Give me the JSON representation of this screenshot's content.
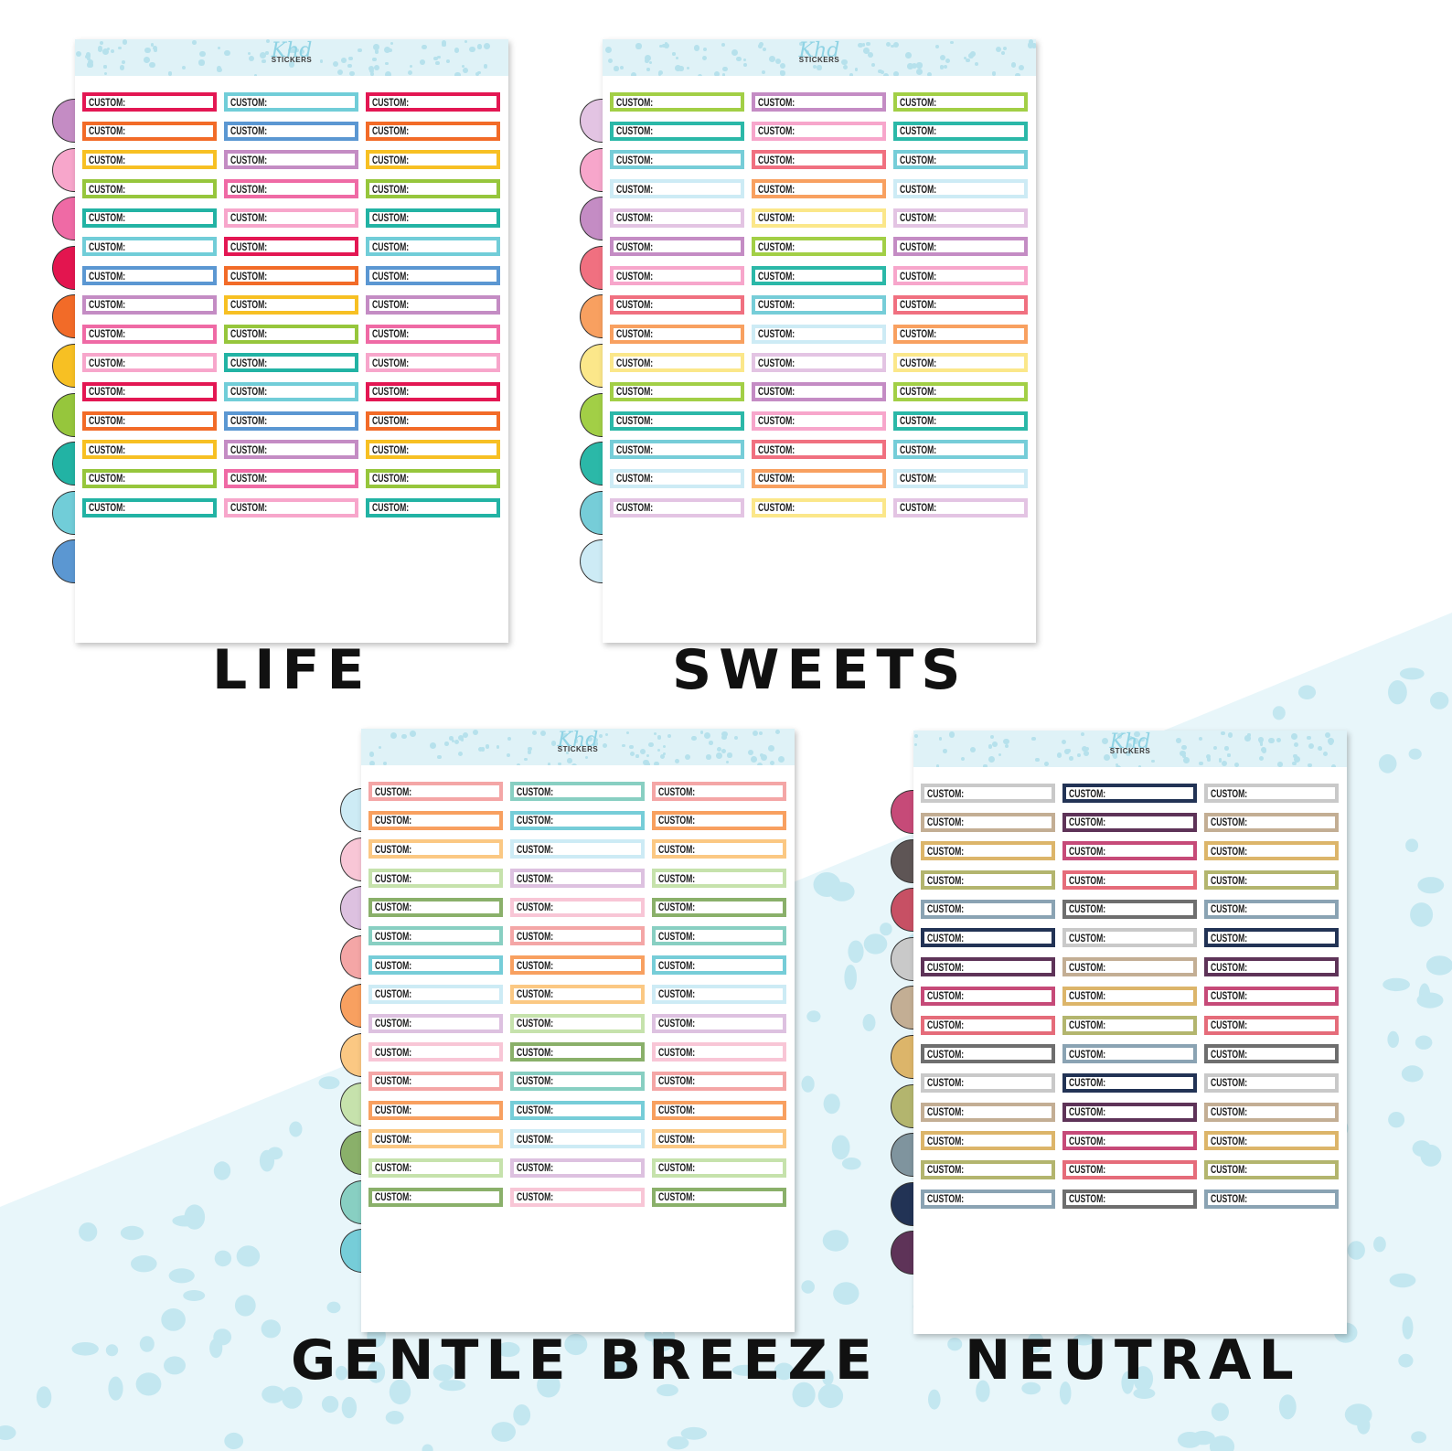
{
  "label_text": "CUSTOM:",
  "logo": {
    "script": "Khd",
    "sub": "STICKERS"
  },
  "sheets": [
    {
      "id": "life",
      "caption": "LIFE",
      "tabs": [
        "#c48cc4",
        "#f7a6cb",
        "#ef6aa5",
        "#e3154f",
        "#f26b28",
        "#f7c023",
        "#96c63c",
        "#22b3a4",
        "#71cdd8",
        "#5b97d2"
      ],
      "columns": [
        [
          "#e31753",
          "#f26b28",
          "#f7c023",
          "#96c63c",
          "#22b3a4",
          "#71cdd8",
          "#5b97d2",
          "#c48cc4",
          "#ef6aa5",
          "#f7a6cb",
          "#e31753",
          "#f26b28",
          "#f7c023",
          "#96c63c",
          "#22b3a4"
        ],
        [
          "#71cdd8",
          "#5b97d2",
          "#c48cc4",
          "#ef6aa5",
          "#f7a6cb",
          "#e31753",
          "#f26b28",
          "#f7c023",
          "#96c63c",
          "#22b3a4",
          "#71cdd8",
          "#5b97d2",
          "#c48cc4",
          "#ef6aa5",
          "#f7a6cb"
        ],
        [
          "#e31753",
          "#f26b28",
          "#f7c023",
          "#96c63c",
          "#22b3a4",
          "#71cdd8",
          "#5b97d2",
          "#c48cc4",
          "#ef6aa5",
          "#f7a6cb",
          "#e31753",
          "#f26b28",
          "#f7c023",
          "#96c63c",
          "#22b3a4"
        ]
      ]
    },
    {
      "id": "sweets",
      "caption": "SWEETS",
      "tabs": [
        "#e3c4e3",
        "#f7a6cb",
        "#c48cc4",
        "#f07080",
        "#f8a060",
        "#fbe78a",
        "#a2cf46",
        "#2bb8a8",
        "#76cdd8",
        "#cdebf5"
      ],
      "columns": [
        [
          "#a2cf46",
          "#2bb8a8",
          "#76cdd8",
          "#cdebf5",
          "#e3c4e3",
          "#c48cc4",
          "#f7a6cb",
          "#f07080",
          "#f8a060",
          "#fbe78a",
          "#a2cf46",
          "#2bb8a8",
          "#76cdd8",
          "#cdebf5",
          "#e3c4e3"
        ],
        [
          "#c48cc4",
          "#f7a6cb",
          "#f07080",
          "#f8a060",
          "#fbe78a",
          "#a2cf46",
          "#2bb8a8",
          "#76cdd8",
          "#cdebf5",
          "#e3c4e3",
          "#c48cc4",
          "#f7a6cb",
          "#f07080",
          "#f8a060",
          "#fbe78a"
        ],
        [
          "#a2cf46",
          "#2bb8a8",
          "#76cdd8",
          "#cdebf5",
          "#e3c4e3",
          "#c48cc4",
          "#f7a6cb",
          "#f07080",
          "#f8a060",
          "#fbe78a",
          "#a2cf46",
          "#2bb8a8",
          "#76cdd8",
          "#cdebf5",
          "#e3c4e3"
        ]
      ]
    },
    {
      "id": "gentle-breeze",
      "caption": "GENTLE BREEZE",
      "tabs": [
        "#cdebf5",
        "#f8c6d6",
        "#ddc1e0",
        "#f4a6a6",
        "#f8a060",
        "#fbc883",
        "#c6e2ac",
        "#8ab06a",
        "#88cfc2",
        "#76cdd8"
      ],
      "columns": [
        [
          "#f4a6a6",
          "#f8a060",
          "#fbc883",
          "#c6e2ac",
          "#8ab06a",
          "#88cfc2",
          "#76cdd8",
          "#cdebf5",
          "#ddc1e0",
          "#f8c6d6",
          "#f4a6a6",
          "#f8a060",
          "#fbc883",
          "#c6e2ac",
          "#8ab06a"
        ],
        [
          "#88cfc2",
          "#76cdd8",
          "#cdebf5",
          "#ddc1e0",
          "#f8c6d6",
          "#f4a6a6",
          "#f8a060",
          "#fbc883",
          "#c6e2ac",
          "#8ab06a",
          "#88cfc2",
          "#76cdd8",
          "#cdebf5",
          "#ddc1e0",
          "#f8c6d6"
        ],
        [
          "#f4a6a6",
          "#f8a060",
          "#fbc883",
          "#c6e2ac",
          "#8ab06a",
          "#88cfc2",
          "#76cdd8",
          "#cdebf5",
          "#ddc1e0",
          "#f8c6d6",
          "#f4a6a6",
          "#f8a060",
          "#fbc883",
          "#c6e2ac",
          "#8ab06a"
        ]
      ]
    },
    {
      "id": "neutral",
      "caption": "NEUTRAL",
      "tabs": [
        "#c64a78",
        "#5e5555",
        "#c75064",
        "#c9c9c9",
        "#c3ae94",
        "#dcb56a",
        "#b3b56e",
        "#7f949e",
        "#223355",
        "#5e3358"
      ],
      "columns": [
        [
          "#c9c9c9",
          "#c3ae94",
          "#dcb56a",
          "#b3b56e",
          "#8aa3b3",
          "#223355",
          "#5e3358",
          "#c64a78",
          "#e56c7a",
          "#6e6e6e",
          "#c9c9c9",
          "#c3ae94",
          "#dcb56a",
          "#b3b56e",
          "#8aa3b3"
        ],
        [
          "#223355",
          "#5e3358",
          "#c64a78",
          "#e56c7a",
          "#6e6e6e",
          "#c9c9c9",
          "#c3ae94",
          "#dcb56a",
          "#b3b56e",
          "#8aa3b3",
          "#223355",
          "#5e3358",
          "#c64a78",
          "#e56c7a",
          "#6e6e6e"
        ],
        [
          "#c9c9c9",
          "#c3ae94",
          "#dcb56a",
          "#b3b56e",
          "#8aa3b3",
          "#223355",
          "#5e3358",
          "#c64a78",
          "#e56c7a",
          "#6e6e6e",
          "#c9c9c9",
          "#c3ae94",
          "#dcb56a",
          "#b3b56e",
          "#8aa3b3"
        ]
      ]
    }
  ]
}
